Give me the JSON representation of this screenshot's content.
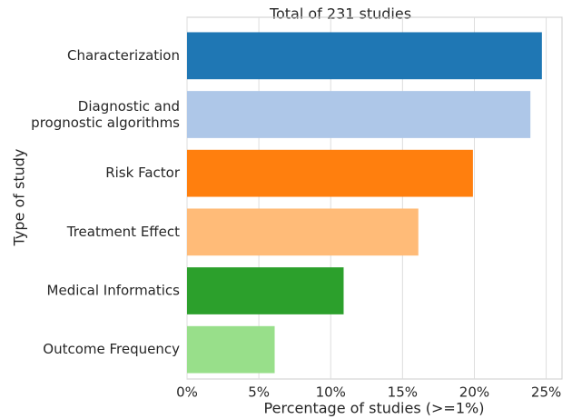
{
  "chart_data": {
    "type": "barh",
    "title": "Total of 231 studies",
    "xlabel": "Percentage of studies (>=1%)",
    "ylabel": "Type of study",
    "categories": [
      "Characterization",
      "Diagnostic and\nprognostic algorithms",
      "Risk Factor",
      "Treatment Effect",
      "Medical Informatics",
      "Outcome Frequency"
    ],
    "values": [
      24.7,
      23.9,
      19.9,
      16.1,
      10.9,
      6.1
    ],
    "colors": [
      "#1f77b4",
      "#aec7e8",
      "#ff7f0e",
      "#ffbb78",
      "#2ca02c",
      "#98df8a"
    ],
    "xlim": [
      0,
      26.1
    ],
    "xticks": [
      {
        "value": 0,
        "label": "0%"
      },
      {
        "value": 5,
        "label": "5%"
      },
      {
        "value": 10,
        "label": "10%"
      },
      {
        "value": 15,
        "label": "15%"
      },
      {
        "value": 20,
        "label": "20%"
      },
      {
        "value": 25,
        "label": "25%"
      }
    ],
    "grid": true
  }
}
